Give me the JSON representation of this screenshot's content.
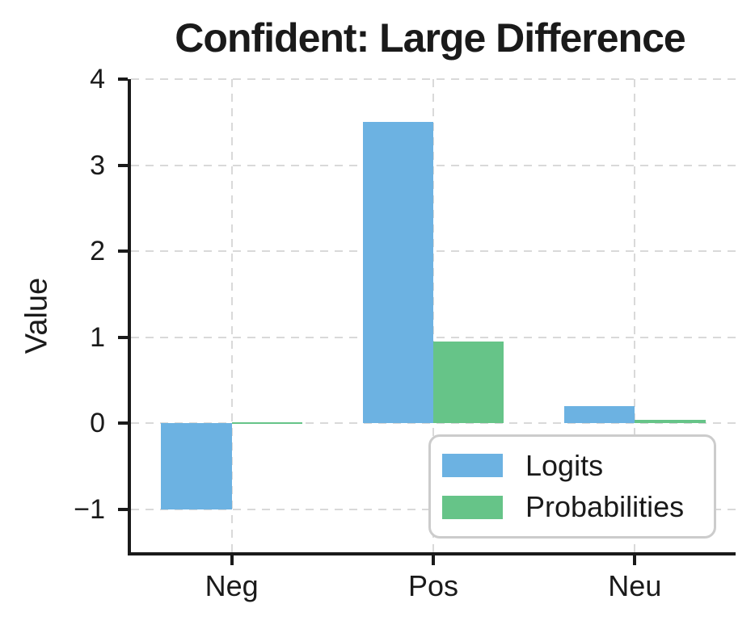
{
  "chart_data": {
    "type": "bar",
    "title": "Confident: Large Difference",
    "ylabel": "Value",
    "xlabel": "",
    "categories": [
      "Neg",
      "Pos",
      "Neu"
    ],
    "series": [
      {
        "name": "Logits",
        "color": "#6CB2E2",
        "values": [
          -1.0,
          3.5,
          0.2
        ]
      },
      {
        "name": "Probabilities",
        "color": "#66C488",
        "values": [
          0.01,
          0.95,
          0.04
        ]
      }
    ],
    "ylim": [
      -1.5,
      4
    ],
    "yticks": [
      {
        "value": 4,
        "label": "4"
      },
      {
        "value": 3,
        "label": "3"
      },
      {
        "value": 2,
        "label": "2"
      },
      {
        "value": 1,
        "label": "1"
      },
      {
        "value": 0,
        "label": "0"
      },
      {
        "value": -1,
        "label": "−1"
      }
    ],
    "bar_width_fraction": 0.35,
    "grid": "dashed",
    "legend_position": "lower right",
    "colors": {
      "background": "#ffffff",
      "axis": "#1a1a1a",
      "gridline": "#d9d9d9",
      "legend_border": "#cccccc",
      "text": "#1a1a1a"
    }
  }
}
